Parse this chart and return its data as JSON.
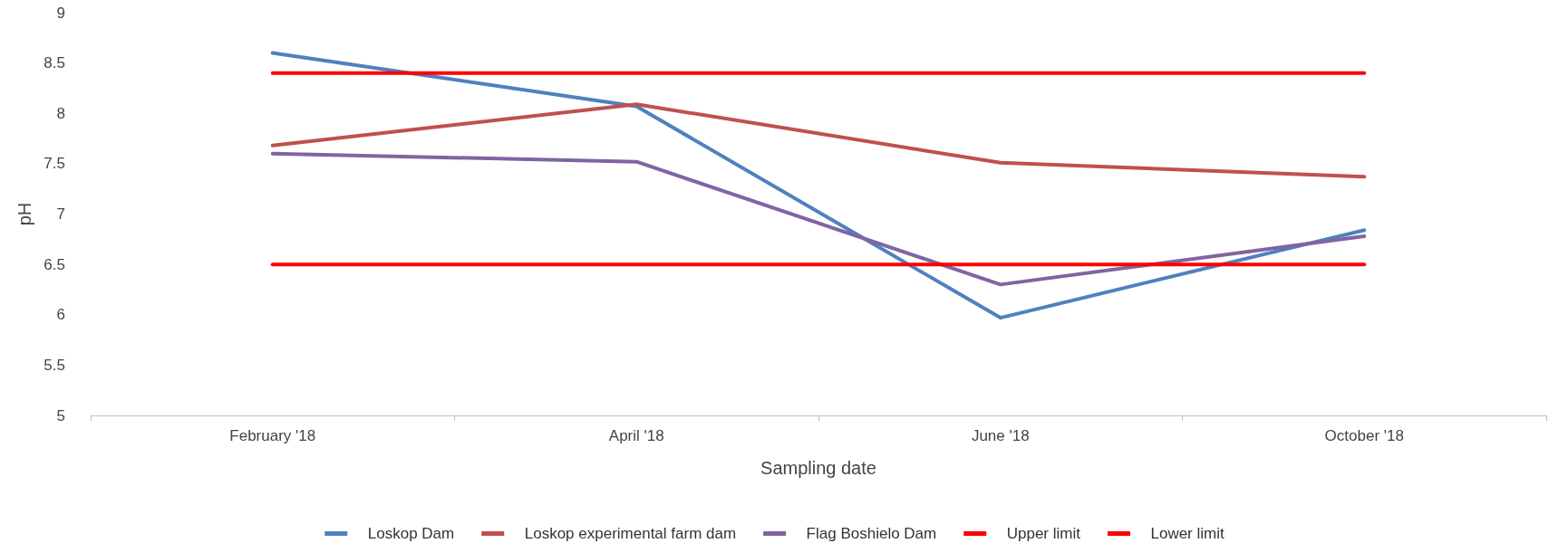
{
  "chart_data": {
    "type": "line",
    "xlabel": "Sampling date",
    "ylabel": "pH",
    "categories": [
      "February '18",
      "April '18",
      "June '18",
      "October '18"
    ],
    "ylim": [
      5,
      9
    ],
    "yticks": [
      5,
      5.5,
      6,
      6.5,
      7,
      7.5,
      8,
      8.5,
      9
    ],
    "grid": false,
    "legend": "bottom",
    "marker": "none",
    "line_style": "solid",
    "series": [
      {
        "name": "Loskop Dam",
        "color": "#4f81bd",
        "values": [
          8.6,
          8.07,
          5.97,
          6.84
        ]
      },
      {
        "name": "Loskop experimental farm dam",
        "color": "#c0504d",
        "values": [
          7.68,
          8.09,
          7.51,
          7.37
        ]
      },
      {
        "name": "Flag Boshielo Dam",
        "color": "#8064a2",
        "values": [
          7.6,
          7.52,
          6.3,
          6.78
        ]
      },
      {
        "name": "Upper limit",
        "color": "#ff0000",
        "values": [
          8.4,
          8.4,
          8.4,
          8.4
        ]
      },
      {
        "name": "Lower limit",
        "color": "#ff0000",
        "values": [
          6.5,
          6.5,
          6.5,
          6.5
        ]
      }
    ]
  }
}
